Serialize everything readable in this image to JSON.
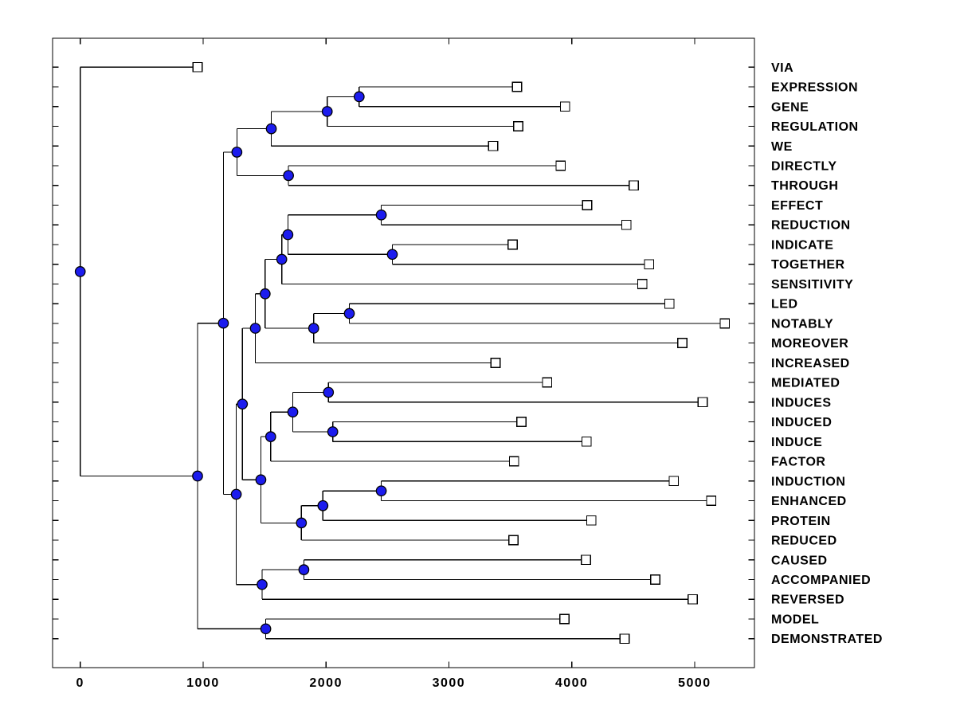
{
  "figure": {
    "background_color": "#ffffff",
    "description": "Horizontal dendrogram / cluster tree of words, root at left, leaf squares at branch tips, blue dots at merge nodes"
  },
  "chart_data": {
    "type": "dendrogram",
    "orientation": "horizontal-root-left",
    "title": "",
    "xlabel": "",
    "ylabel": "",
    "grid": false,
    "xlim": [
      -225,
      5487
    ],
    "x_ticks": [
      0,
      1000,
      2000,
      3000,
      4000,
      5000
    ],
    "x_tick_labels": [
      "0",
      "1000",
      "2000",
      "3000",
      "4000",
      "5000"
    ],
    "colors": {
      "line": "#000000",
      "internal_node_fill": "#1c1cee",
      "internal_node_edge": "#000000",
      "leaf_marker_fill": "#ffffff",
      "leaf_marker_edge": "#000000",
      "text": "#000000",
      "background": "#ffffff"
    },
    "markers": {
      "internal_node": "filled-circle",
      "leaf": "open-square"
    },
    "leaves": [
      {
        "label": "VIA",
        "x": 955
      },
      {
        "label": "EXPRESSION",
        "x": 3555
      },
      {
        "label": "GENE",
        "x": 3945
      },
      {
        "label": "REGULATION",
        "x": 3565
      },
      {
        "label": "WE",
        "x": 3360
      },
      {
        "label": "DIRECTLY",
        "x": 3910
      },
      {
        "label": "THROUGH",
        "x": 4505
      },
      {
        "label": "EFFECT",
        "x": 4125
      },
      {
        "label": "REDUCTION",
        "x": 4445
      },
      {
        "label": "INDICATE",
        "x": 3520
      },
      {
        "label": "TOGETHER",
        "x": 4630
      },
      {
        "label": "SENSITIVITY",
        "x": 4575
      },
      {
        "label": "LED",
        "x": 4795
      },
      {
        "label": "NOTABLY",
        "x": 5245
      },
      {
        "label": "MOREOVER",
        "x": 4900
      },
      {
        "label": "INCREASED",
        "x": 3380
      },
      {
        "label": "MEDIATED",
        "x": 3800
      },
      {
        "label": "INDUCES",
        "x": 5065
      },
      {
        "label": "INDUCED",
        "x": 3590
      },
      {
        "label": "INDUCE",
        "x": 4120
      },
      {
        "label": "FACTOR",
        "x": 3530
      },
      {
        "label": "INDUCTION",
        "x": 4830
      },
      {
        "label": "ENHANCED",
        "x": 5135
      },
      {
        "label": "PROTEIN",
        "x": 4160
      },
      {
        "label": "REDUCED",
        "x": 3525
      },
      {
        "label": "CAUSED",
        "x": 4115
      },
      {
        "label": "ACCOMPANIED",
        "x": 4680
      },
      {
        "label": "REVERSED",
        "x": 4985
      },
      {
        "label": "MODEL",
        "x": 3940
      },
      {
        "label": "DEMONSTRATED",
        "x": 4430
      }
    ],
    "tree": {
      "x": 0,
      "children": [
        {
          "leaf": "VIA",
          "x": 955
        },
        {
          "x": 955,
          "children": [
            {
              "x": 1165,
              "children": [
                {
                  "x": 1275,
                  "children": [
                    {
                      "x": 1555,
                      "children": [
                        {
                          "x": 2010,
                          "children": [
                            {
                              "x": 2270,
                              "children": [
                                {
                                  "leaf": "EXPRESSION",
                                  "x": 3555
                                },
                                {
                                  "leaf": "GENE",
                                  "x": 3945
                                }
                              ]
                            },
                            {
                              "leaf": "REGULATION",
                              "x": 3565
                            }
                          ]
                        },
                        {
                          "leaf": "WE",
                          "x": 3360
                        }
                      ]
                    },
                    {
                      "x": 1695,
                      "children": [
                        {
                          "leaf": "DIRECTLY",
                          "x": 3910
                        },
                        {
                          "leaf": "THROUGH",
                          "x": 4505
                        }
                      ]
                    }
                  ]
                },
                {
                  "x": 1270,
                  "children": [
                    {
                      "x": 1320,
                      "children": [
                        {
                          "x": 1425,
                          "children": [
                            {
                              "x": 1505,
                              "children": [
                                {
                                  "x": 1640,
                                  "children": [
                                    {
                                      "x": 1690,
                                      "children": [
                                        {
                                          "x": 2450,
                                          "children": [
                                            {
                                              "leaf": "EFFECT",
                                              "x": 4125
                                            },
                                            {
                                              "leaf": "REDUCTION",
                                              "x": 4445
                                            }
                                          ]
                                        },
                                        {
                                          "x": 2540,
                                          "children": [
                                            {
                                              "leaf": "INDICATE",
                                              "x": 3520
                                            },
                                            {
                                              "leaf": "TOGETHER",
                                              "x": 4630
                                            }
                                          ]
                                        }
                                      ]
                                    },
                                    {
                                      "leaf": "SENSITIVITY",
                                      "x": 4575
                                    }
                                  ]
                                },
                                {
                                  "x": 1900,
                                  "children": [
                                    {
                                      "x": 2190,
                                      "children": [
                                        {
                                          "leaf": "LED",
                                          "x": 4795
                                        },
                                        {
                                          "leaf": "NOTABLY",
                                          "x": 5245
                                        }
                                      ]
                                    },
                                    {
                                      "leaf": "MOREOVER",
                                      "x": 4900
                                    }
                                  ]
                                }
                              ]
                            },
                            {
                              "leaf": "INCREASED",
                              "x": 3380
                            }
                          ]
                        },
                        {
                          "x": 1470,
                          "children": [
                            {
                              "x": 1550,
                              "children": [
                                {
                                  "x": 1730,
                                  "children": [
                                    {
                                      "x": 2020,
                                      "children": [
                                        {
                                          "leaf": "MEDIATED",
                                          "x": 3800
                                        },
                                        {
                                          "leaf": "INDUCES",
                                          "x": 5065
                                        }
                                      ]
                                    },
                                    {
                                      "x": 2055,
                                      "children": [
                                        {
                                          "leaf": "INDUCED",
                                          "x": 3590
                                        },
                                        {
                                          "leaf": "INDUCE",
                                          "x": 4120
                                        }
                                      ]
                                    }
                                  ]
                                },
                                {
                                  "leaf": "FACTOR",
                                  "x": 3530
                                }
                              ]
                            },
                            {
                              "x": 1800,
                              "children": [
                                {
                                  "x": 1975,
                                  "children": [
                                    {
                                      "x": 2450,
                                      "children": [
                                        {
                                          "leaf": "INDUCTION",
                                          "x": 4830
                                        },
                                        {
                                          "leaf": "ENHANCED",
                                          "x": 5135
                                        }
                                      ]
                                    },
                                    {
                                      "leaf": "PROTEIN",
                                      "x": 4160
                                    }
                                  ]
                                },
                                {
                                  "leaf": "REDUCED",
                                  "x": 3525
                                }
                              ]
                            }
                          ]
                        }
                      ]
                    },
                    {
                      "x": 1480,
                      "children": [
                        {
                          "x": 1820,
                          "children": [
                            {
                              "leaf": "CAUSED",
                              "x": 4115
                            },
                            {
                              "leaf": "ACCOMPANIED",
                              "x": 4680
                            }
                          ]
                        },
                        {
                          "leaf": "REVERSED",
                          "x": 4985
                        }
                      ]
                    }
                  ]
                }
              ]
            },
            {
              "x": 1510,
              "children": [
                {
                  "leaf": "MODEL",
                  "x": 3940
                },
                {
                  "leaf": "DEMONSTRATED",
                  "x": 4430
                }
              ]
            }
          ]
        }
      ]
    }
  }
}
